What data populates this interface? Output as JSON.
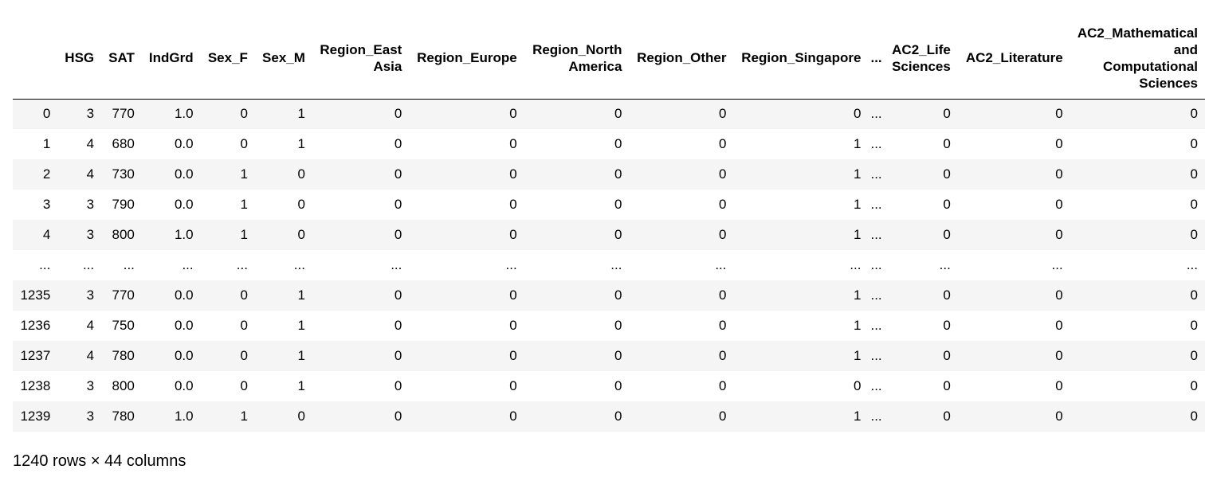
{
  "table": {
    "columns": [
      "",
      "HSG",
      "SAT",
      "IndGrd",
      "Sex_F",
      "Sex_M",
      "Region_East Asia",
      "Region_Europe",
      "Region_North America",
      "Region_Other",
      "Region_Singapore",
      "...",
      "AC2_Life Sciences",
      "AC2_Literature",
      "AC2_Mathematical and Computational Sciences"
    ],
    "rows": [
      [
        "0",
        "3",
        "770",
        "1.0",
        "0",
        "1",
        "0",
        "0",
        "0",
        "0",
        "0",
        "...",
        "0",
        "0",
        "0"
      ],
      [
        "1",
        "4",
        "680",
        "0.0",
        "0",
        "1",
        "0",
        "0",
        "0",
        "0",
        "1",
        "...",
        "0",
        "0",
        "0"
      ],
      [
        "2",
        "4",
        "730",
        "0.0",
        "1",
        "0",
        "0",
        "0",
        "0",
        "0",
        "1",
        "...",
        "0",
        "0",
        "0"
      ],
      [
        "3",
        "3",
        "790",
        "0.0",
        "1",
        "0",
        "0",
        "0",
        "0",
        "0",
        "1",
        "...",
        "0",
        "0",
        "0"
      ],
      [
        "4",
        "3",
        "800",
        "1.0",
        "1",
        "0",
        "0",
        "0",
        "0",
        "0",
        "1",
        "...",
        "0",
        "0",
        "0"
      ],
      [
        "...",
        "...",
        "...",
        "...",
        "...",
        "...",
        "...",
        "...",
        "...",
        "...",
        "...",
        "...",
        "...",
        "...",
        "..."
      ],
      [
        "1235",
        "3",
        "770",
        "0.0",
        "0",
        "1",
        "0",
        "0",
        "0",
        "0",
        "1",
        "...",
        "0",
        "0",
        "0"
      ],
      [
        "1236",
        "4",
        "750",
        "0.0",
        "0",
        "1",
        "0",
        "0",
        "0",
        "0",
        "1",
        "...",
        "0",
        "0",
        "0"
      ],
      [
        "1237",
        "4",
        "780",
        "0.0",
        "0",
        "1",
        "0",
        "0",
        "0",
        "0",
        "1",
        "...",
        "0",
        "0",
        "0"
      ],
      [
        "1238",
        "3",
        "800",
        "0.0",
        "0",
        "1",
        "0",
        "0",
        "0",
        "0",
        "0",
        "...",
        "0",
        "0",
        "0"
      ],
      [
        "1239",
        "3",
        "780",
        "1.0",
        "1",
        "0",
        "0",
        "0",
        "0",
        "0",
        "1",
        "...",
        "0",
        "0",
        "0"
      ]
    ]
  },
  "shape_text": "1240 rows × 44 columns"
}
